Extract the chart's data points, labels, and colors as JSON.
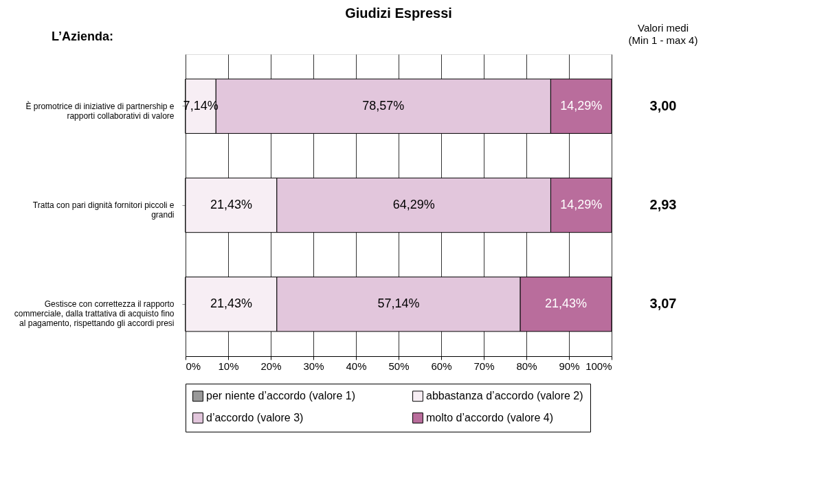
{
  "chart_data": {
    "type": "bar",
    "orientation": "horizontal",
    "stacked": true,
    "title": "Giudizi Espressi",
    "categories": [
      "È promotrice di iniziative di partnership e rapporti collaborativi di valore",
      "Tratta con pari dignità fornitori piccoli e grandi",
      "Gestisce con correttezza il rapporto commerciale, dalla trattativa di acquisto fino al pagamento, rispettando gli accordi presi"
    ],
    "series": [
      {
        "name": "per niente d’accordo (valore 1)",
        "color": "#999999",
        "values": [
          0,
          0,
          0
        ],
        "value_labels": [
          null,
          null,
          null
        ]
      },
      {
        "name": "abbastanza d’accordo (valore 2)",
        "color": "#f7eef4",
        "values": [
          7.14,
          21.43,
          21.43
        ],
        "value_labels": [
          "7,14%",
          "21,43%",
          "21,43%"
        ]
      },
      {
        "name": "d’accordo (valore 3)",
        "color": "#e2c6dc",
        "values": [
          78.57,
          64.29,
          57.14
        ],
        "value_labels": [
          "78,57%",
          "64,29%",
          "57,14%"
        ]
      },
      {
        "name": "molto d’accordo (valore 4)",
        "color": "#b96d9c",
        "values": [
          14.29,
          14.29,
          21.43
        ],
        "value_labels": [
          "14,29%",
          "14,29%",
          "21,43%"
        ]
      }
    ],
    "xlim": [
      0,
      100
    ],
    "xticks": [
      {
        "value": 0,
        "label": "0%"
      },
      {
        "value": 10,
        "label": "10%"
      },
      {
        "value": 20,
        "label": "20%"
      },
      {
        "value": 30,
        "label": "30%"
      },
      {
        "value": 40,
        "label": "40%"
      },
      {
        "value": 50,
        "label": "50%"
      },
      {
        "value": 60,
        "label": "60%"
      },
      {
        "value": 70,
        "label": "70%"
      },
      {
        "value": 80,
        "label": "80%"
      },
      {
        "value": 90,
        "label": "90%"
      },
      {
        "value": 100,
        "label": "100%"
      }
    ],
    "grid": "x",
    "legend": "bottom",
    "annotations": [
      "L’Azienda:",
      "Valori medi (Min 1 - max 4)",
      "3,00",
      "2,93",
      "3,07"
    ]
  }
}
